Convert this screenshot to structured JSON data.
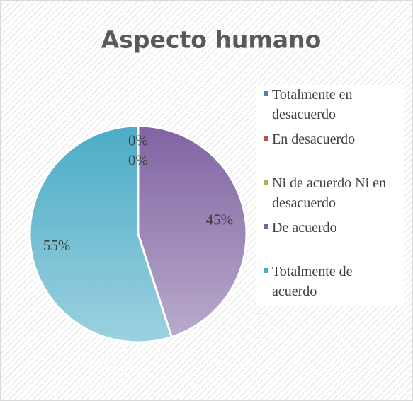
{
  "chart_data": {
    "type": "pie",
    "title": "Aspecto humano",
    "categories": [
      "Totalmente en desacuerdo",
      "En desacuerdo",
      "Ni de acuerdo Ni en desacuerdo",
      "De acuerdo",
      "Totalmente de acuerdo"
    ],
    "values": [
      0,
      0,
      0,
      45,
      55
    ],
    "value_labels": [
      "0%",
      "0%",
      null,
      "45%",
      "55%"
    ],
    "colors": [
      "#4f81bd",
      "#c0504d",
      "#9bbb59",
      "#8064a2",
      "#4bacc6"
    ],
    "legend": "right"
  }
}
